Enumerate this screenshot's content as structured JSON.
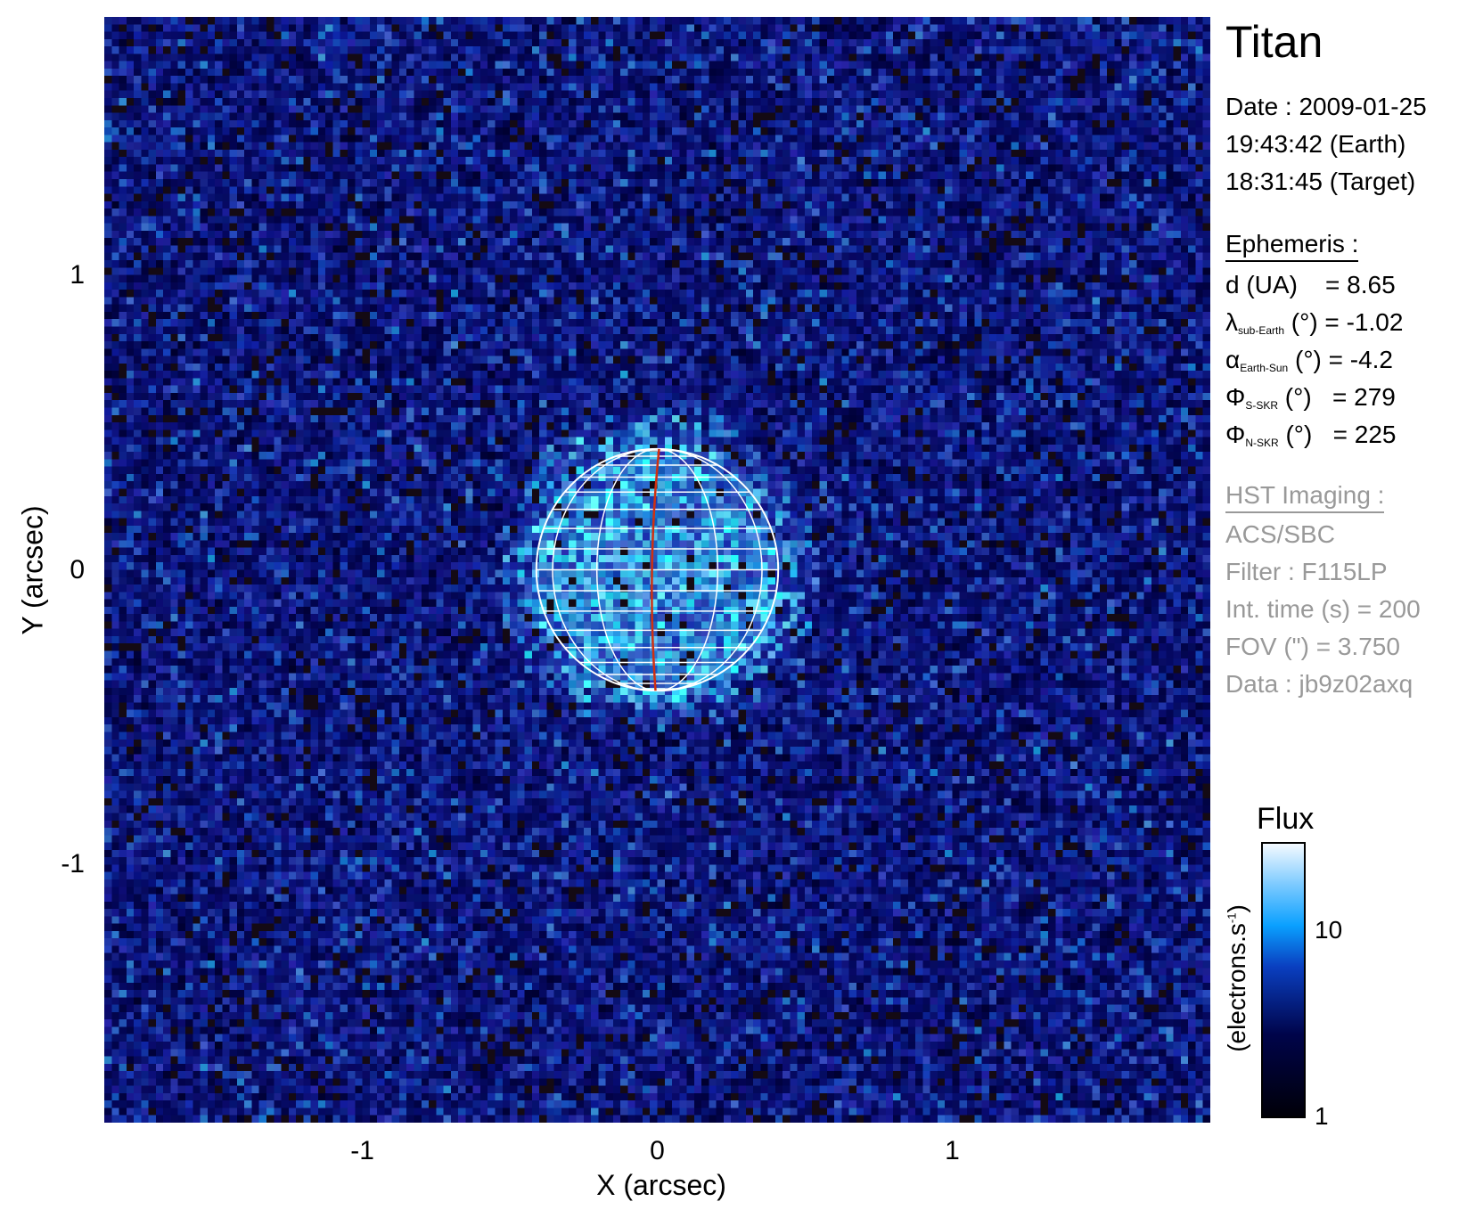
{
  "chart_data": {
    "type": "heatmap",
    "title": "Titan",
    "xlabel": "X (arcsec)",
    "ylabel": "Y (arcsec)",
    "xlim": [
      -1.875,
      1.875
    ],
    "ylim": [
      -1.875,
      1.875
    ],
    "xticks": [
      {
        "v": -1,
        "label": "-1"
      },
      {
        "v": 0,
        "label": "0"
      },
      {
        "v": 1,
        "label": "1"
      }
    ],
    "yticks": [
      {
        "v": 1,
        "label": "1"
      },
      {
        "v": 0,
        "label": "0"
      },
      {
        "v": -1,
        "label": "-1"
      }
    ],
    "globe": {
      "center": [
        0,
        0
      ],
      "radius_arcsec": 0.41,
      "grid_color": "#ffffff",
      "central_meridian_color": "#d03010"
    },
    "colorbar": {
      "title": "Flux",
      "label": "(electrons.s",
      "label_sup": "-1",
      "label_end": ")",
      "scale": "log",
      "range": [
        1,
        30
      ],
      "ticks": [
        {
          "v": 10,
          "label": "10"
        },
        {
          "v": 1,
          "label": "1"
        }
      ],
      "colormap": [
        "#000008",
        "#00044a",
        "#0a3fc0",
        "#0aa0ff",
        "#7ccaff",
        "#f4faff"
      ]
    }
  },
  "info": {
    "target": "Titan",
    "date": "Date : 2009-01-25",
    "time_earth": "19:43:42 (Earth)",
    "time_target": "18:31:45 (Target)",
    "ephemeris_header": "Ephemeris :",
    "d": {
      "sym": "d (UA)",
      "sub": "",
      "rest": "    = 8.65"
    },
    "lambda": {
      "sym": "λ",
      "sub": "sub-Earth",
      "rest": " (°) = -1.02"
    },
    "alpha": {
      "sym": "α",
      "sub": "Earth-Sun",
      "rest": " (°) = -4.2"
    },
    "phi_s": {
      "sym": "Φ",
      "sub": "S-SKR",
      "rest": " (°)   = 279"
    },
    "phi_n": {
      "sym": "Φ",
      "sub": "N-SKR",
      "rest": " (°)   = 225"
    },
    "hst_header": "HST Imaging :",
    "instrument": "ACS/SBC",
    "filter": "Filter : F115LP",
    "int_time": "Int. time (s) = 200",
    "fov": "FOV (\") = 3.750",
    "data": "Data : jb9z02axq"
  }
}
